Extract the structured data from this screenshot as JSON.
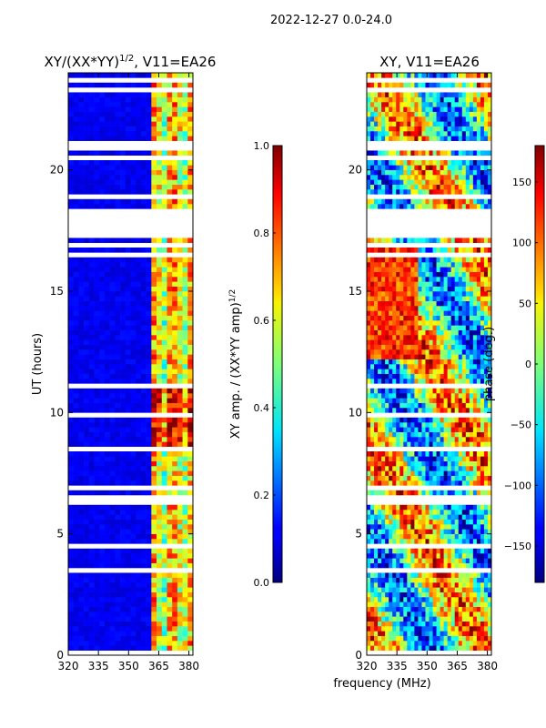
{
  "suptitle": "2022-12-27 0.0-24.0",
  "chart_data": [
    {
      "type": "heatmap",
      "title_main": "XY/(XX*YY)",
      "title_exp": "1/2",
      "title_tail": ", V11=EA26",
      "xlabel": "frequency (MHz)",
      "ylabel": "UT (hours)",
      "x_ticks": [
        "320",
        "335",
        "350",
        "365",
        "380"
      ],
      "x_tick_values": [
        320,
        335,
        350,
        365,
        380
      ],
      "y_ticks": [
        "0",
        "5",
        "10",
        "15",
        "20"
      ],
      "y_tick_values": [
        0,
        5,
        10,
        15,
        20
      ],
      "xlim": [
        320,
        382
      ],
      "ylim": [
        0,
        24
      ],
      "colorbar": {
        "label_main": "XY amp. / (XX*YY amp)",
        "label_exp": "1/2",
        "ticks": [
          "0.0",
          "0.2",
          "0.4",
          "0.6",
          "0.8",
          "1.0"
        ],
        "tick_values": [
          0,
          0.2,
          0.4,
          0.6,
          0.8,
          1.0
        ],
        "range": [
          0,
          1
        ]
      }
    },
    {
      "type": "heatmap",
      "title": "XY, V11=EA26",
      "xlabel": "frequency (MHz)",
      "x_ticks": [
        "320",
        "335",
        "350",
        "365",
        "380"
      ],
      "x_tick_values": [
        320,
        335,
        350,
        365,
        380
      ],
      "y_ticks": [
        "0",
        "5",
        "10",
        "15",
        "20"
      ],
      "y_tick_values": [
        0,
        5,
        10,
        15,
        20
      ],
      "xlim": [
        320,
        382
      ],
      "ylim": [
        0,
        24
      ],
      "colorbar": {
        "label": "phase (deg.)",
        "ticks": [
          "−150",
          "−100",
          "−50",
          "0",
          "50",
          "100",
          "150"
        ],
        "tick_values": [
          -150,
          -100,
          -50,
          0,
          50,
          100,
          150
        ],
        "range": [
          -180,
          180
        ]
      }
    }
  ]
}
